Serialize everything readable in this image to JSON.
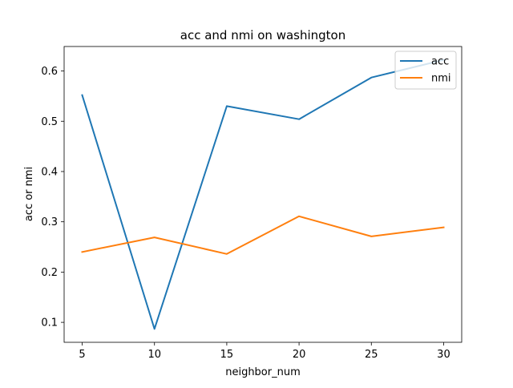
{
  "chart_data": {
    "type": "line",
    "title": "acc and nmi on washington",
    "xlabel": "neighbor_num",
    "ylabel": "acc or nmi",
    "x": [
      5,
      10,
      15,
      20,
      25,
      30
    ],
    "series": [
      {
        "name": "acc",
        "values": [
          0.552,
          0.087,
          0.53,
          0.504,
          0.587,
          0.622
        ],
        "color": "#1f77b4"
      },
      {
        "name": "nmi",
        "values": [
          0.24,
          0.269,
          0.236,
          0.311,
          0.271,
          0.289
        ],
        "color": "#ff7f0e"
      }
    ],
    "xlim": [
      3.75,
      31.25
    ],
    "ylim": [
      0.0603,
      0.6487
    ],
    "xticks": [
      5,
      10,
      15,
      20,
      25,
      30
    ],
    "yticks": [
      0.1,
      0.2,
      0.3,
      0.4,
      0.5,
      0.6
    ],
    "ytick_labels": [
      "0.1",
      "0.2",
      "0.3",
      "0.4",
      "0.5",
      "0.6"
    ],
    "grid": false,
    "legend_position": "upper right"
  }
}
